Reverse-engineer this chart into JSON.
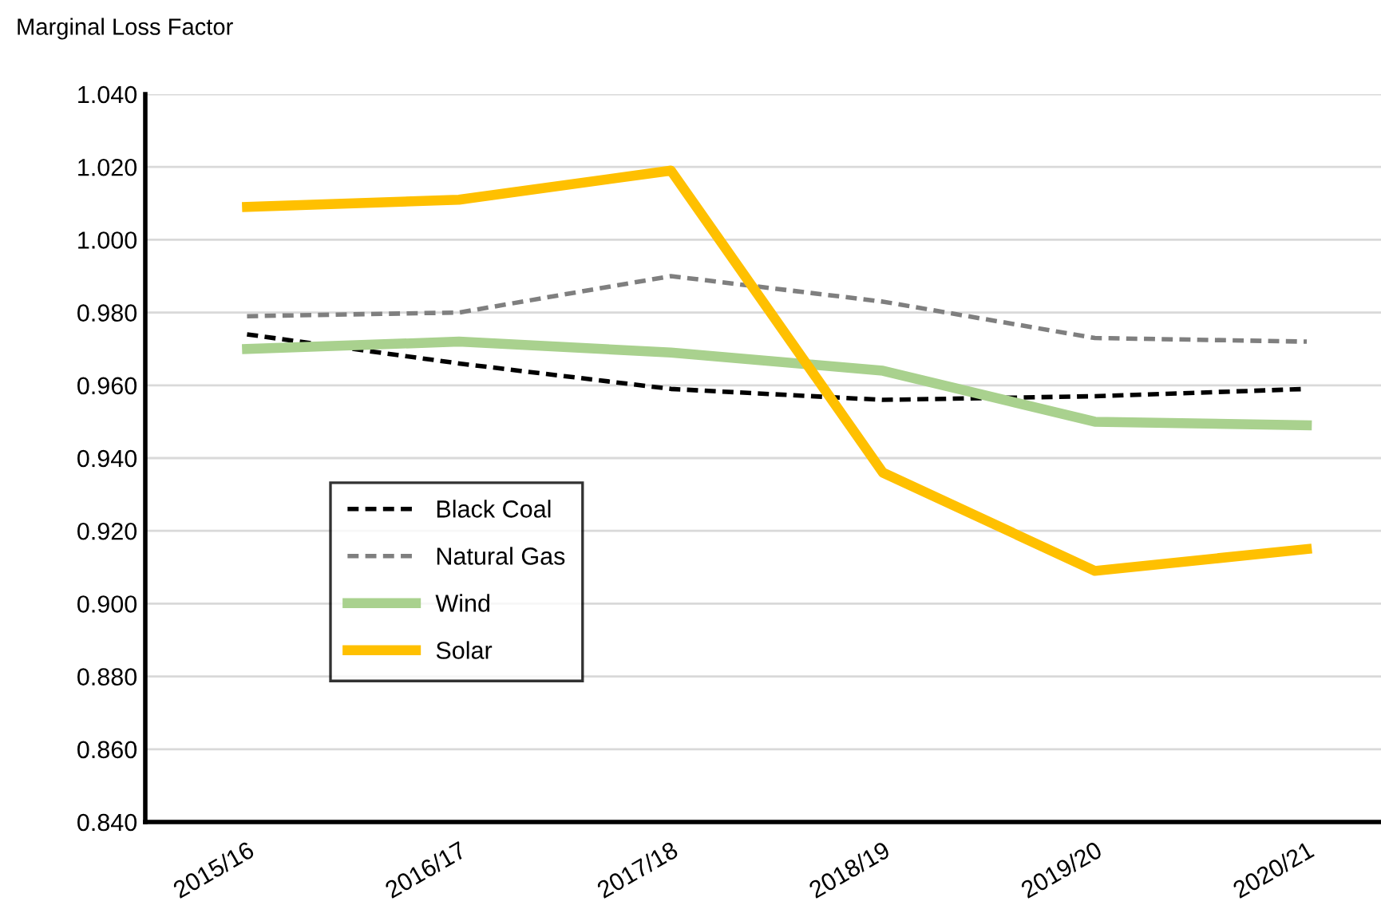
{
  "chart_data": {
    "type": "line",
    "ylabel": "Marginal Loss Factor",
    "categories": [
      "2015/16",
      "2016/17",
      "2017/18",
      "2018/19",
      "2019/20",
      "2020/21"
    ],
    "series": [
      {
        "name": "Black Coal",
        "color": "#000000",
        "line_style": "dashed",
        "values": [
          0.974,
          0.966,
          0.959,
          0.956,
          0.957,
          0.959
        ]
      },
      {
        "name": "Natural Gas",
        "color": "#7f7f7f",
        "line_style": "dashed",
        "values": [
          0.979,
          0.98,
          0.99,
          0.983,
          0.973,
          0.972
        ]
      },
      {
        "name": "Wind",
        "color": "#a9d18e",
        "line_style": "solid",
        "values": [
          0.97,
          0.972,
          0.969,
          0.964,
          0.95,
          0.949
        ]
      },
      {
        "name": "Solar",
        "color": "#ffc000",
        "line_style": "solid",
        "values": [
          1.009,
          1.011,
          1.019,
          0.936,
          0.909,
          0.915
        ]
      }
    ],
    "ylim": [
      0.84,
      1.04
    ],
    "yticks": [
      {
        "value": 0.84,
        "label": "0.840"
      },
      {
        "value": 0.86,
        "label": "0.860"
      },
      {
        "value": 0.88,
        "label": "0.880"
      },
      {
        "value": 0.9,
        "label": "0.900"
      },
      {
        "value": 0.92,
        "label": "0.920"
      },
      {
        "value": 0.94,
        "label": "0.940"
      },
      {
        "value": 0.96,
        "label": "0.960"
      },
      {
        "value": 0.98,
        "label": "0.980"
      },
      {
        "value": 1.0,
        "label": "1.000"
      },
      {
        "value": 1.02,
        "label": "1.020"
      },
      {
        "value": 1.04,
        "label": "1.040"
      }
    ],
    "grid": "y",
    "legend": "center left",
    "marker": "none"
  }
}
